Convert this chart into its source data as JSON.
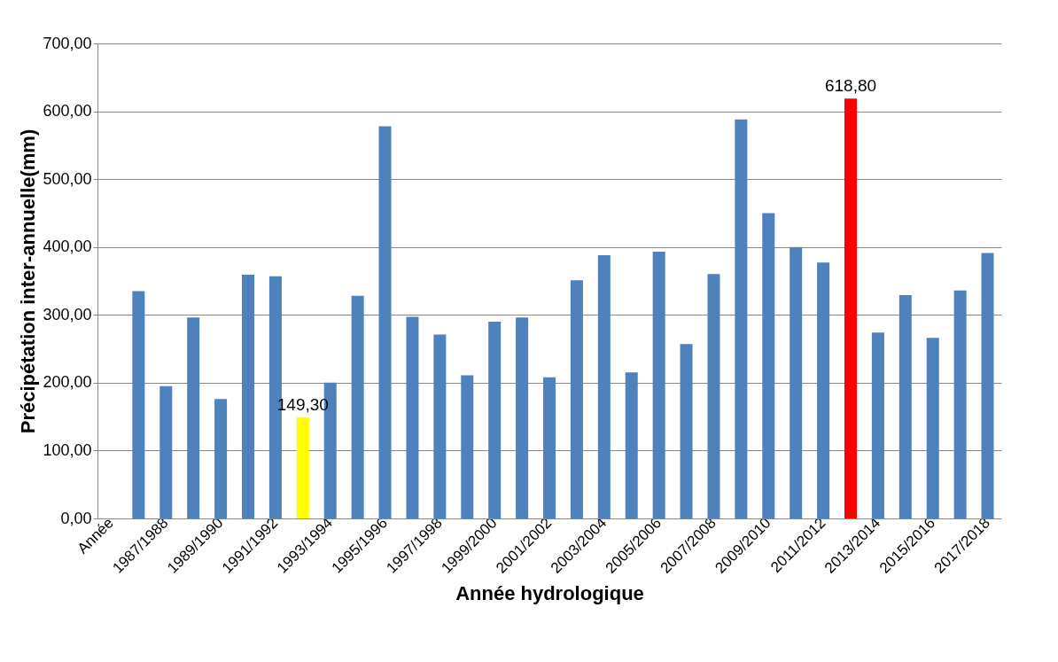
{
  "chart_data": {
    "type": "bar",
    "xlabel": "Année hydrologique",
    "ylabel": "Précipétation inter-annuelle(mm)",
    "categories": [
      "Année",
      null,
      "1987/1988",
      null,
      "1989/1990",
      null,
      "1991/1992",
      null,
      "1993/1994",
      null,
      "1995/1996",
      null,
      "1997/1998",
      null,
      "1999/2000",
      null,
      "2001/2002",
      null,
      "2003/2004",
      null,
      "2005/2006",
      null,
      "2007/2008",
      null,
      "2009/2010",
      null,
      "2011/2012",
      null,
      "2013/2014",
      null,
      "2015/2016",
      null,
      "2017/2018"
    ],
    "values": [
      null,
      335,
      195,
      296,
      176,
      359,
      357,
      149.3,
      200,
      328,
      578,
      297,
      271,
      211,
      290,
      296,
      208,
      351,
      388,
      215,
      393,
      257,
      360,
      588,
      450,
      400,
      377,
      618.8,
      274,
      329,
      266,
      336,
      391
    ],
    "colors": [
      "#4f81bd",
      "#4f81bd",
      "#4f81bd",
      "#4f81bd",
      "#4f81bd",
      "#4f81bd",
      "#4f81bd",
      "#ffff00",
      "#4f81bd",
      "#4f81bd",
      "#4f81bd",
      "#4f81bd",
      "#4f81bd",
      "#4f81bd",
      "#4f81bd",
      "#4f81bd",
      "#4f81bd",
      "#4f81bd",
      "#4f81bd",
      "#4f81bd",
      "#4f81bd",
      "#4f81bd",
      "#4f81bd",
      "#4f81bd",
      "#4f81bd",
      "#4f81bd",
      "#4f81bd",
      "#ff0000",
      "#4f81bd",
      "#4f81bd",
      "#4f81bd",
      "#4f81bd",
      "#4f81bd"
    ],
    "value_labels": [
      null,
      null,
      null,
      null,
      null,
      null,
      null,
      "149,30",
      null,
      null,
      null,
      null,
      null,
      null,
      null,
      null,
      null,
      null,
      null,
      null,
      null,
      null,
      null,
      null,
      null,
      null,
      null,
      "618,80",
      null,
      null,
      null,
      null,
      null
    ],
    "ylim": [
      0,
      700
    ],
    "yticks": [
      {
        "value": 0,
        "label": "0,00"
      },
      {
        "value": 100,
        "label": "100,00"
      },
      {
        "value": 200,
        "label": "200,00"
      },
      {
        "value": 300,
        "label": "300,00"
      },
      {
        "value": 400,
        "label": "400,00"
      },
      {
        "value": 500,
        "label": "500,00"
      },
      {
        "value": 600,
        "label": "600,00"
      },
      {
        "value": 700,
        "label": "700,00"
      }
    ],
    "grid": "y"
  }
}
